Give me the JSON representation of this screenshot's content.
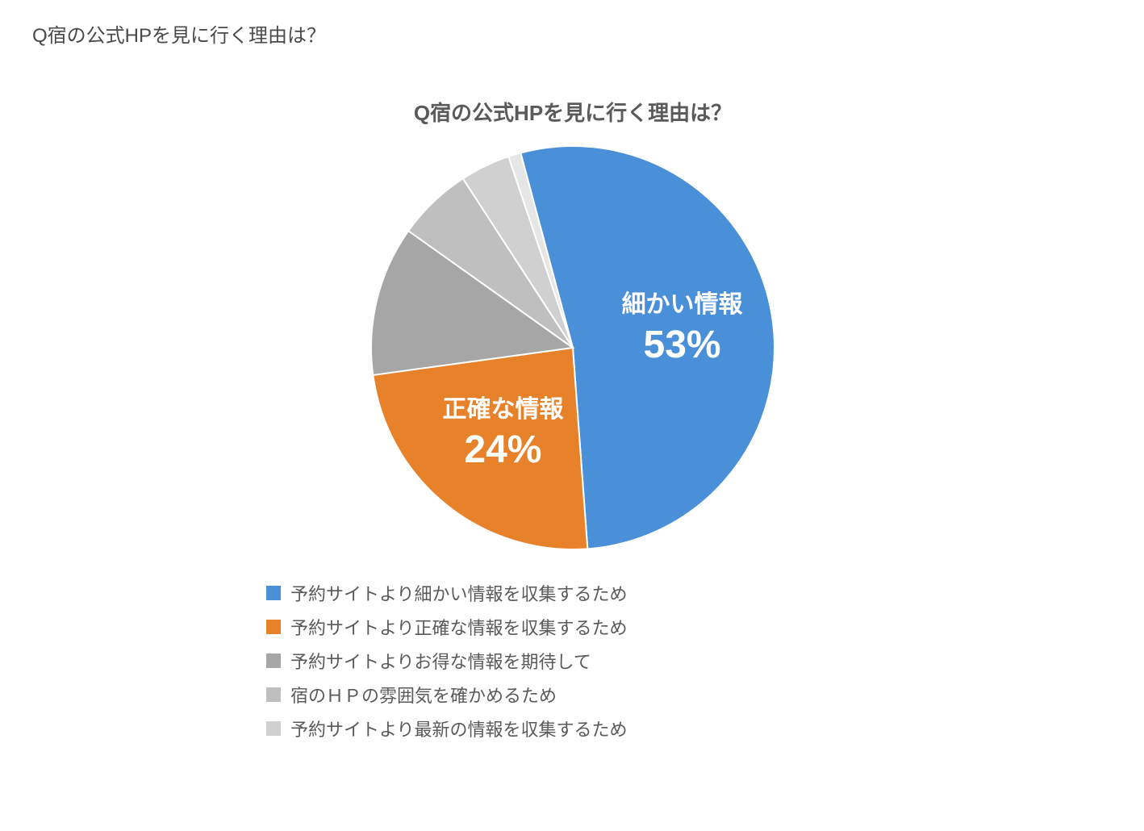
{
  "page_heading": "Q宿の公式HPを見に行く理由は？",
  "chart": {
    "type": "pie",
    "title": "Q宿の公式HPを見に行く理由は？",
    "title_fontsize": 26,
    "title_color": "#5a5a5a",
    "background_color": "#ffffff",
    "slice_border_color": "#ffffff",
    "slice_border_width": 2,
    "start_angle_deg": -15,
    "direction": "clockwise",
    "slices": [
      {
        "key": "detailed",
        "value": 53,
        "color": "#4a90d9",
        "label": "細かい情報",
        "pct_label": "53%",
        "show_label": true,
        "label_color": "#ffffff",
        "label_fontsize": 30,
        "pct_fontsize": 48,
        "legend": "予約サイトより細かい情報を収集するため"
      },
      {
        "key": "accurate",
        "value": 24,
        "color": "#e8822a",
        "label": "正確な情報",
        "pct_label": "24%",
        "show_label": true,
        "label_color": "#ffffff",
        "label_fontsize": 30,
        "pct_fontsize": 48,
        "legend": "予約サイトより正確な情報を収集するため"
      },
      {
        "key": "deals",
        "value": 12,
        "color": "#a6a6a6",
        "label": "",
        "pct_label": "",
        "show_label": false,
        "label_color": "#ffffff",
        "label_fontsize": 0,
        "pct_fontsize": 0,
        "legend": "予約サイトよりお得な情報を期待して"
      },
      {
        "key": "atmos",
        "value": 6,
        "color": "#bfbfbf",
        "label": "",
        "pct_label": "",
        "show_label": false,
        "label_color": "#ffffff",
        "label_fontsize": 0,
        "pct_fontsize": 0,
        "legend": "宿のＨＰの雰囲気を確かめるため"
      },
      {
        "key": "latest",
        "value": 4,
        "color": "#d0d0d0",
        "label": "",
        "pct_label": "",
        "show_label": false,
        "label_color": "#ffffff",
        "label_fontsize": 0,
        "pct_fontsize": 0,
        "legend": "予約サイトより最新の情報を収集するため"
      },
      {
        "key": "other",
        "value": 1,
        "color": "#e6e6e6",
        "label": "",
        "pct_label": "",
        "show_label": false,
        "label_color": "#ffffff",
        "label_fontsize": 0,
        "pct_fontsize": 0,
        "legend": ""
      }
    ],
    "legend": {
      "fontsize": 22,
      "text_color": "#5a5a5a",
      "swatch_size": 18,
      "position": "below"
    }
  }
}
